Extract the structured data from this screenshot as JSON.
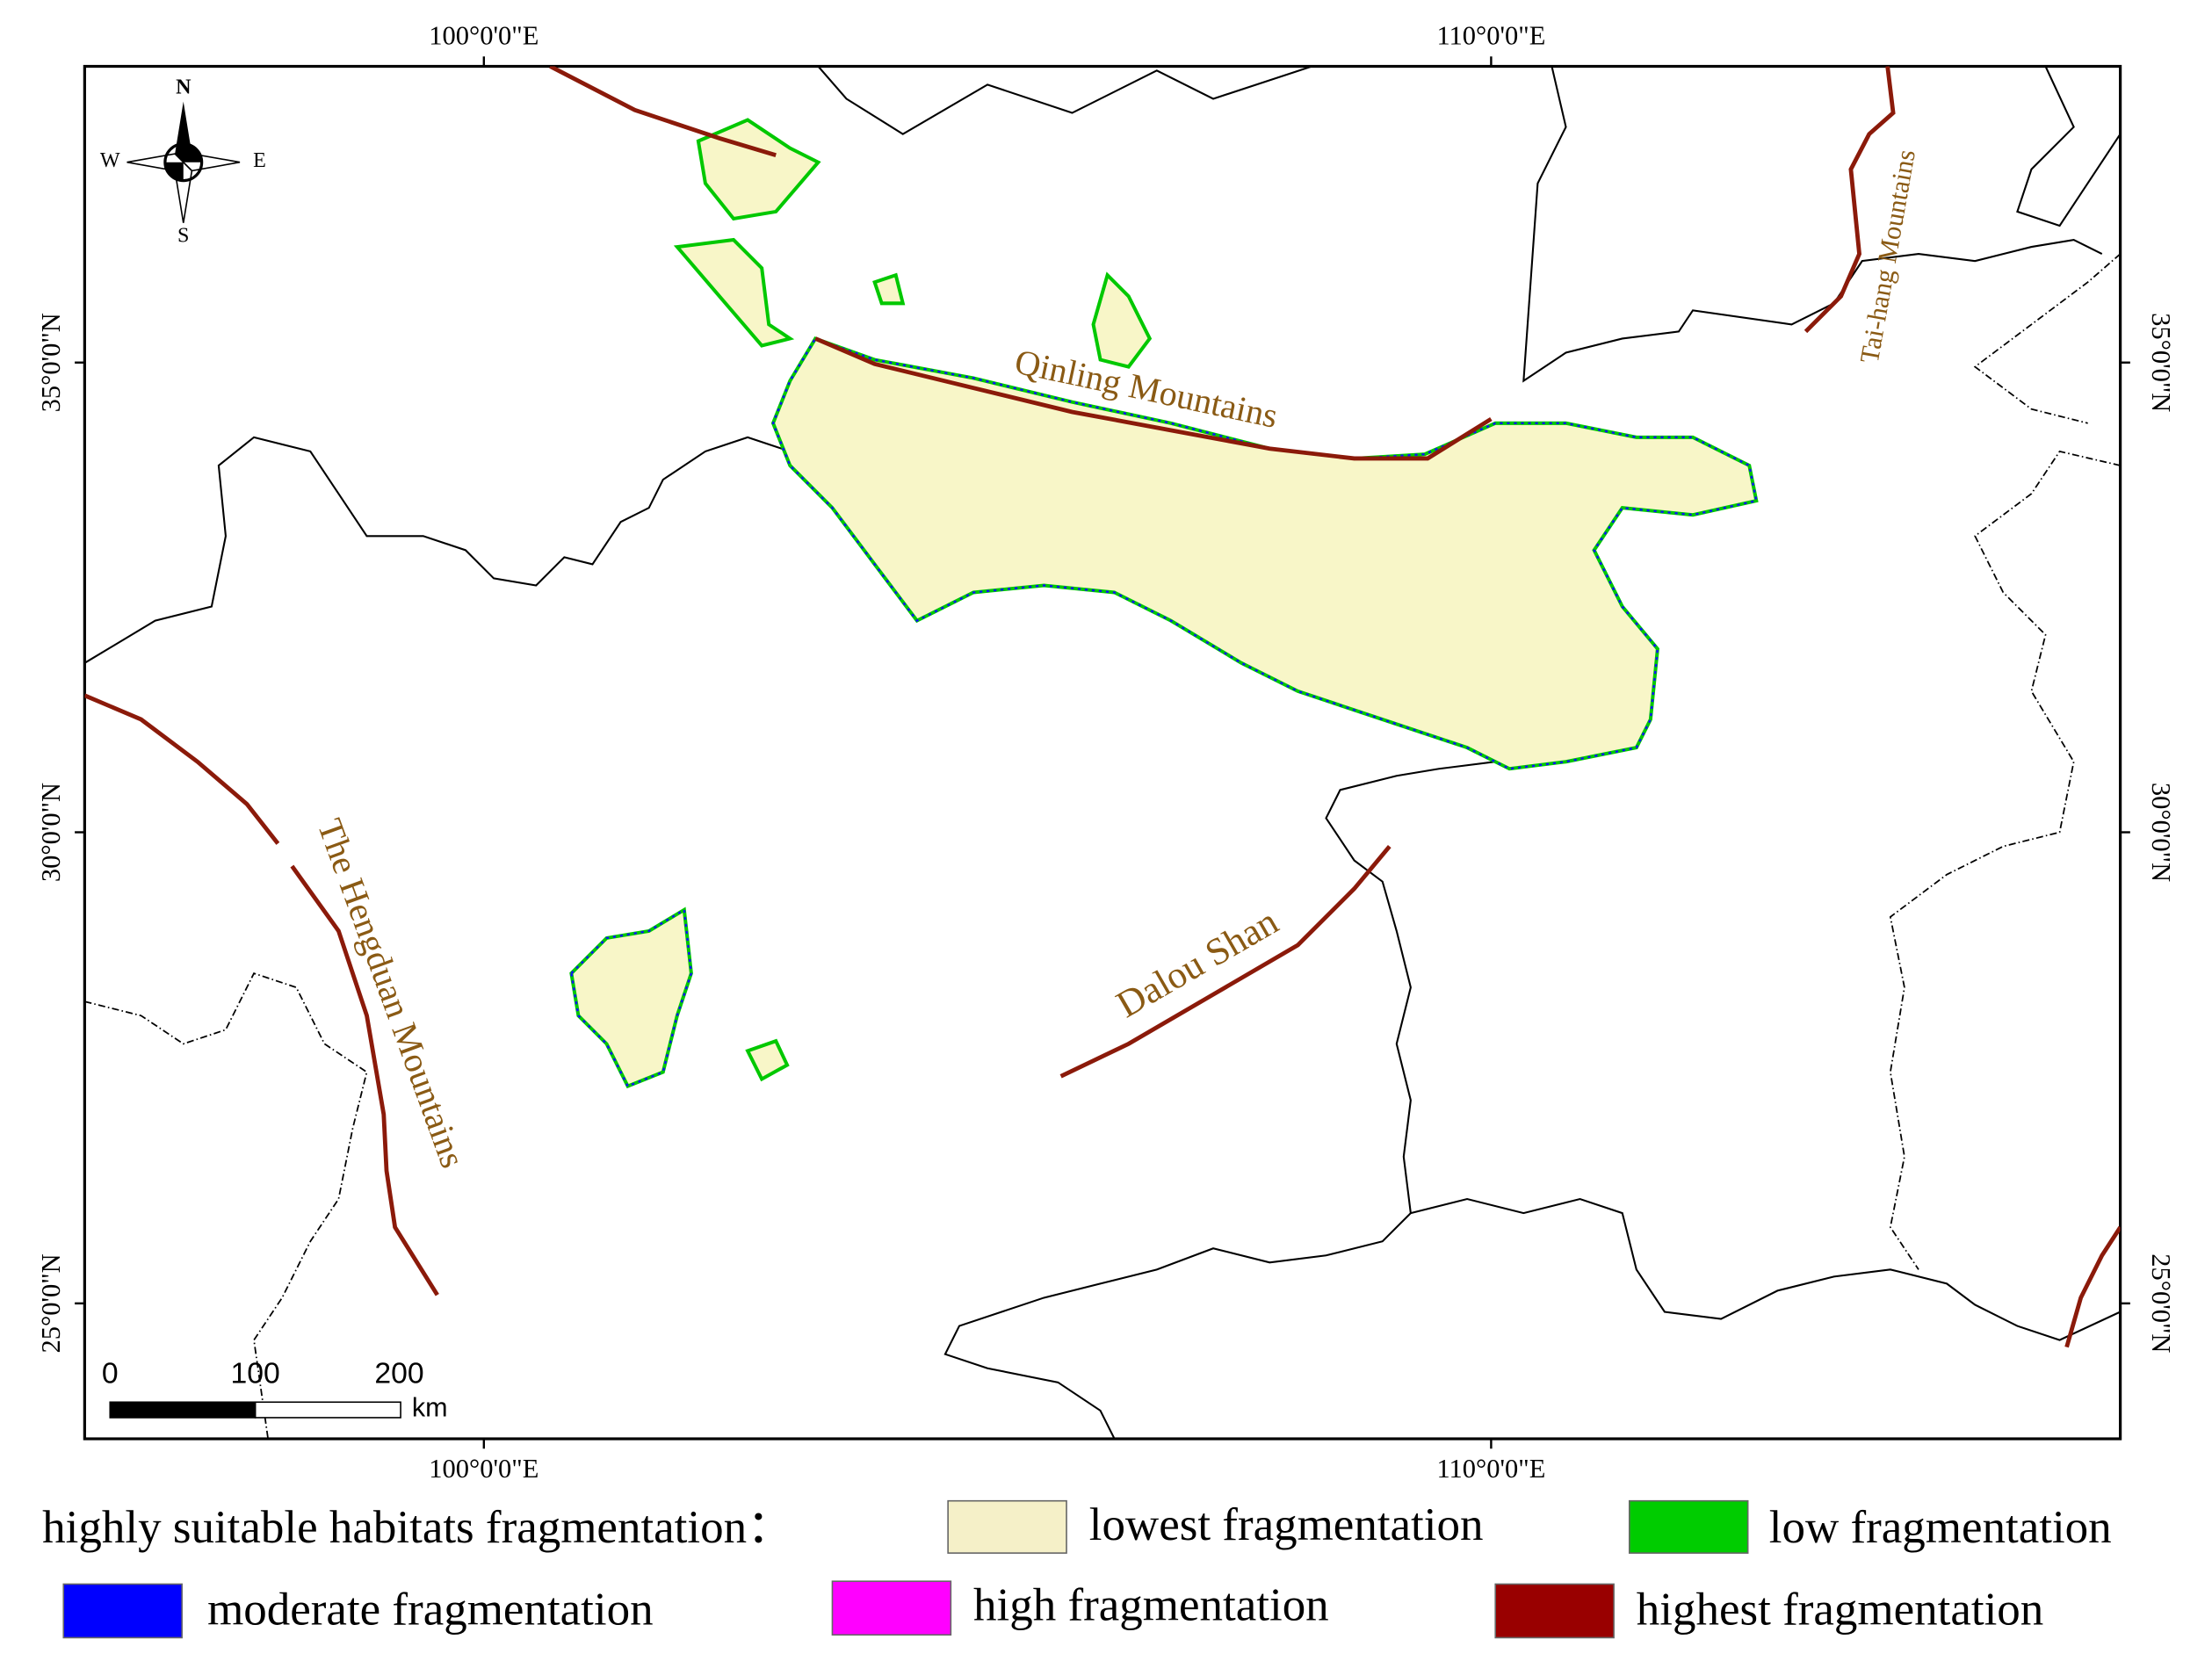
{
  "graticule": {
    "top": [
      "100°0'0\"E",
      "110°0'0\"E"
    ],
    "bottom": [
      "100°0'0\"E",
      "110°0'0\"E"
    ],
    "left": [
      "35°0'0\"N",
      "30°0'0\"N",
      "25°0'0\"N"
    ],
    "right": [
      "35°0'0\"N",
      "30°0'0\"N",
      "25°0'0\"N"
    ]
  },
  "compass": {
    "north": "N",
    "south": "S",
    "west": "W",
    "east": "E"
  },
  "scale_bar": {
    "labels": [
      "0",
      "100",
      "200"
    ],
    "unit": "km"
  },
  "features": {
    "qinling": "Qinling Mountains",
    "taihang": "Tai-hang Mountains",
    "hengduan": "The Hengduan Mountains",
    "dalou": "Dalou Shan"
  },
  "legend": {
    "title": "highly suitable habitats fragmentation：",
    "items": [
      {
        "label": "lowest fragmentation",
        "color": "#f5f0c8"
      },
      {
        "label": "low fragmentation",
        "color": "#00cc00"
      },
      {
        "label": "moderate fragmentation",
        "color": "#0000ff"
      },
      {
        "label": "high fragmentation",
        "color": "#ff00ff"
      },
      {
        "label": "highest fragmentation",
        "color": "#990000"
      }
    ]
  }
}
